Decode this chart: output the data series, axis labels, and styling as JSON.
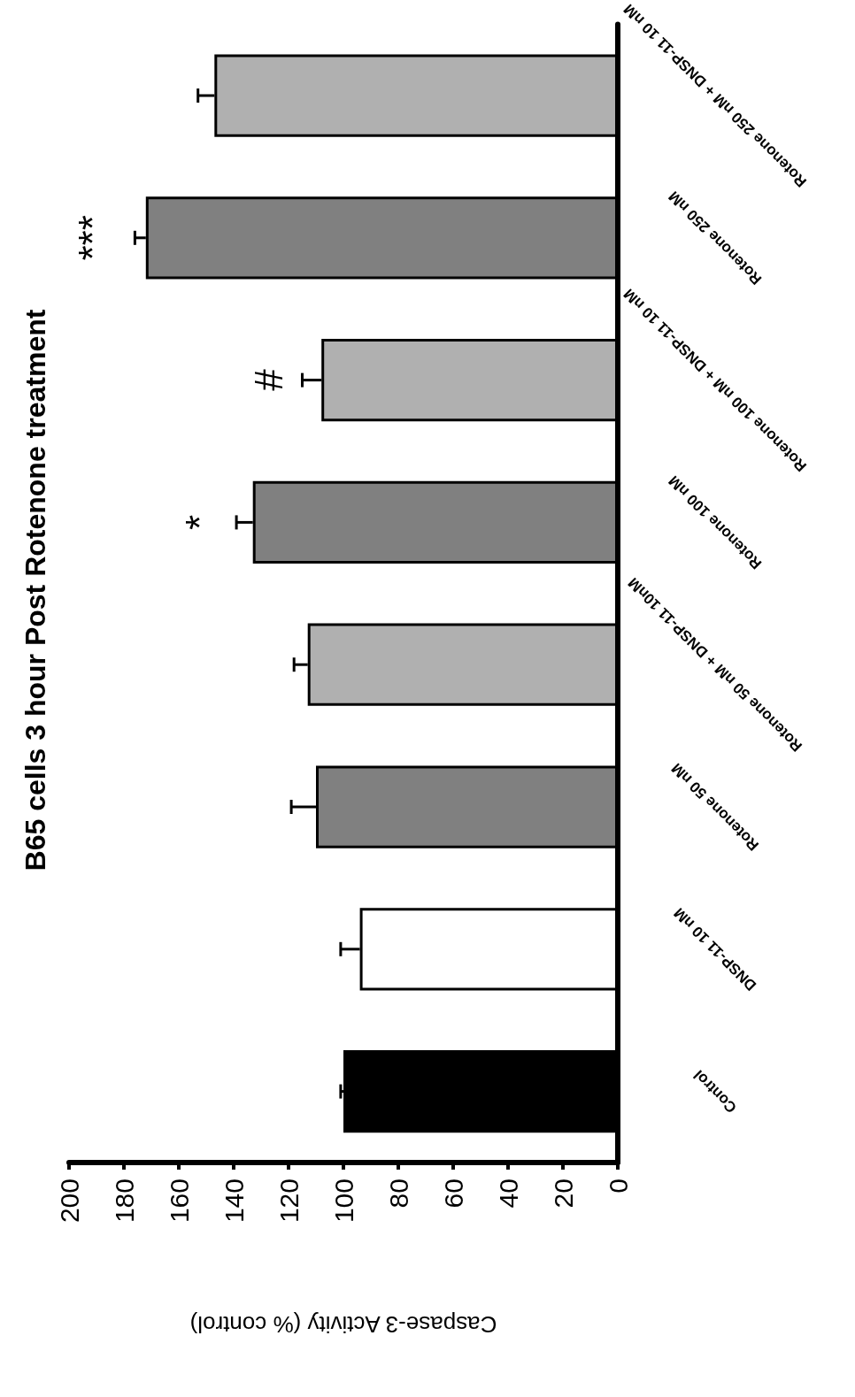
{
  "chart_data": {
    "type": "bar",
    "orientation": "horizontal",
    "title": "B65 cells 3 hour Post Rotenone treatment",
    "xlabel": "Caspase-3 Activity (% control)",
    "categories": [
      "Rotenone 250 nM + DNSP-11 10 nM",
      "Rotenone 250 nM",
      "Rotenone 100 nM + DNSP-11 10 nM",
      "Rotenone 100 nM",
      "Rotenone 50 nM + DNSP-11 10nM",
      "Rotenone 50 nM",
      "DNSP-11 10 nM",
      "Control"
    ],
    "values": [
      147,
      172,
      108,
      133,
      113,
      110,
      94,
      100
    ],
    "errors": [
      [
        147,
        153
      ],
      [
        172,
        176
      ],
      [
        108,
        115
      ],
      [
        133,
        139
      ],
      [
        113,
        118
      ],
      [
        110,
        119
      ],
      [
        94,
        101
      ],
      [
        100,
        101
      ]
    ],
    "colors": [
      "#b0b0b0",
      "#808080",
      "#b0b0b0",
      "#808080",
      "#b0b0b0",
      "#808080",
      "#ffffff",
      "#000000"
    ],
    "xlim": [
      200,
      0
    ],
    "xticks": [
      0,
      20,
      40,
      60,
      80,
      100,
      120,
      140,
      160,
      180,
      200
    ],
    "grid": false,
    "annotations": [
      {
        "text": "***",
        "x": 172,
        "y": "Rotenone 250 nM"
      },
      {
        "text": "#",
        "x": 108,
        "y": "Rotenone 100 nM + DNSP-11 10 nM"
      },
      {
        "text": "*",
        "x": 133,
        "y": "Rotenone 100 nM"
      }
    ]
  }
}
